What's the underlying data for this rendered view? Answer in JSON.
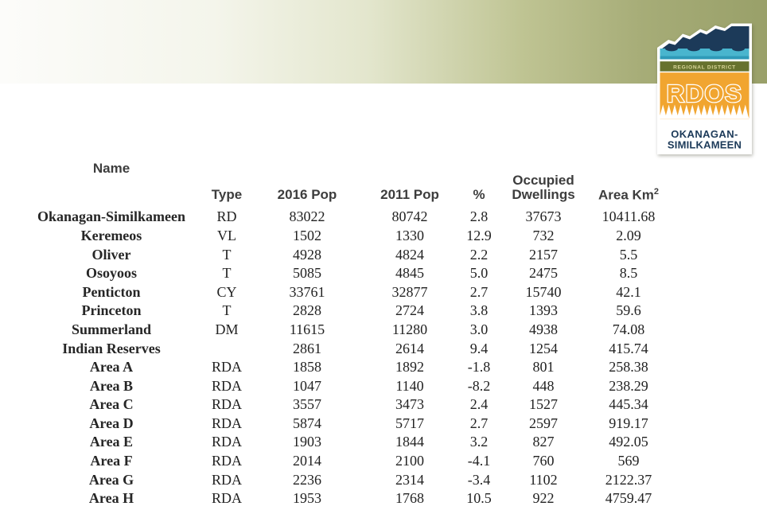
{
  "banner": {
    "gradient_from": "#fcfcfa",
    "gradient_to": "#99a069"
  },
  "logo": {
    "region_label": "REGIONAL DISTRICT",
    "acronym": "RDOS",
    "name_line1": "OKANAGAN-",
    "name_line2": "SIMILKAMEEN",
    "colors": {
      "navy": "#1c3a59",
      "cyan": "#49b5ce",
      "teal": "#2e9ab8",
      "olive": "#67722e",
      "olive_text": "#dbd89a",
      "orange": "#f1a530",
      "white": "#ffffff"
    }
  },
  "table": {
    "columns": [
      {
        "label": "Name"
      },
      {
        "label": "Type"
      },
      {
        "label": "2016 Pop"
      },
      {
        "label": "2011 Pop"
      },
      {
        "label": "%"
      },
      {
        "label": "Occupied Dwellings"
      },
      {
        "label": "Area Km",
        "sup": "2"
      }
    ],
    "rows": [
      [
        "Okanagan-Similkameen",
        "RD",
        "83022",
        "80742",
        "2.8",
        "37673",
        "10411.68"
      ],
      [
        "Keremeos",
        "VL",
        "1502",
        "1330",
        "12.9",
        "732",
        "2.09"
      ],
      [
        "Oliver",
        "T",
        "4928",
        "4824",
        "2.2",
        "2157",
        "5.5"
      ],
      [
        "Osoyoos",
        "T",
        "5085",
        "4845",
        "5.0",
        "2475",
        "8.5"
      ],
      [
        "Penticton",
        "CY",
        "33761",
        "32877",
        "2.7",
        "15740",
        "42.1"
      ],
      [
        "Princeton",
        "T",
        "2828",
        "2724",
        "3.8",
        "1393",
        "59.6"
      ],
      [
        "Summerland",
        "DM",
        "11615",
        "11280",
        "3.0",
        "4938",
        "74.08"
      ],
      [
        "Indian Reserves",
        "",
        "2861",
        "2614",
        "9.4",
        "1254",
        "415.74"
      ],
      [
        "Area A",
        "RDA",
        "1858",
        "1892",
        "-1.8",
        "801",
        "258.38"
      ],
      [
        "Area B",
        "RDA",
        "1047",
        "1140",
        "-8.2",
        "448",
        "238.29"
      ],
      [
        "Area C",
        "RDA",
        "3557",
        "3473",
        "2.4",
        "1527",
        "445.34"
      ],
      [
        "Area D",
        "RDA",
        "5874",
        "5717",
        "2.7",
        "2597",
        "919.17"
      ],
      [
        "Area E",
        "RDA",
        "1903",
        "1844",
        "3.2",
        "827",
        "492.05"
      ],
      [
        "Area F",
        "RDA",
        "2014",
        "2100",
        "-4.1",
        "760",
        "569"
      ],
      [
        "Area G",
        "RDA",
        "2236",
        "2314",
        "-3.4",
        "1102",
        "2122.37"
      ],
      [
        "Area H",
        "RDA",
        "1953",
        "1768",
        "10.5",
        "922",
        "4759.47"
      ]
    ]
  }
}
